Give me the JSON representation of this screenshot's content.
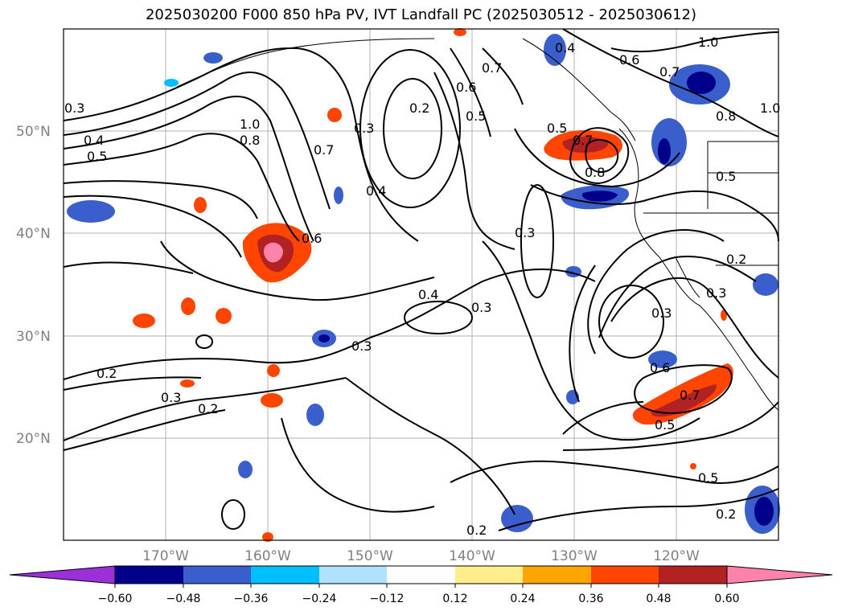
{
  "title": "2025030200 F000 850 hPa PV, IVT Landfall PC (2025030512 - 2025030612)",
  "map": {
    "lon_range": [
      -180,
      -110
    ],
    "lat_range": [
      10,
      60
    ],
    "gridlines": true,
    "lat_labels": [
      "20°N",
      "30°N",
      "40°N",
      "50°N"
    ],
    "lon_labels": [
      "170°W",
      "160°W",
      "150°W",
      "140°W",
      "130°W",
      "120°W"
    ],
    "contour_labels": [
      "0.2",
      "0.3",
      "0.4",
      "0.5",
      "0.6",
      "0.7",
      "0.8",
      "1.0"
    ]
  },
  "colorbar": {
    "ticks": [
      "−0.60",
      "−0.48",
      "−0.36",
      "−0.24",
      "−0.12",
      "0.12",
      "0.24",
      "0.36",
      "0.48",
      "0.60"
    ],
    "colors": [
      "#9b30d9",
      "#00008b",
      "#3a5fcd",
      "#00bfff",
      "#b0e2ff",
      "#ffffff",
      "#ffec8b",
      "#ffa500",
      "#ff4500",
      "#b22222",
      "#ff82ab"
    ],
    "extend": "both"
  }
}
